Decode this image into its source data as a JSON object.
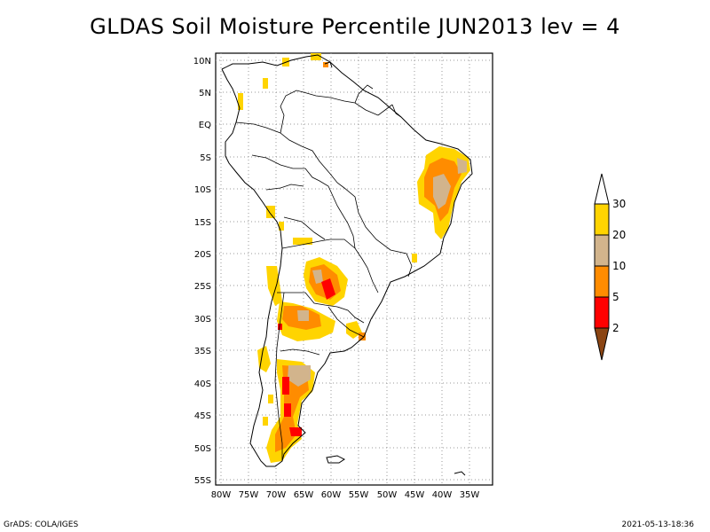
{
  "title": "GLDAS Soil Moisture Percentile JUN2013 lev = 4",
  "footer": {
    "left": "GrADS: COLA/IGES",
    "right": "2021-05-13-18:36"
  },
  "axes": {
    "lon_ticks": [
      "80W",
      "75W",
      "70W",
      "65W",
      "60W",
      "55W",
      "50W",
      "45W",
      "40W",
      "35W"
    ],
    "lat_ticks": [
      "10N",
      "5N",
      "EQ",
      "5S",
      "10S",
      "15S",
      "20S",
      "25S",
      "30S",
      "35S",
      "40S",
      "45S",
      "50S",
      "55S"
    ]
  },
  "colorbar": {
    "labels": [
      "30",
      "20",
      "10",
      "5",
      "2"
    ],
    "colors": [
      "#ffd400",
      "#d2b48c",
      "#ff8c00",
      "#ff0000",
      "#8b4513"
    ]
  }
}
